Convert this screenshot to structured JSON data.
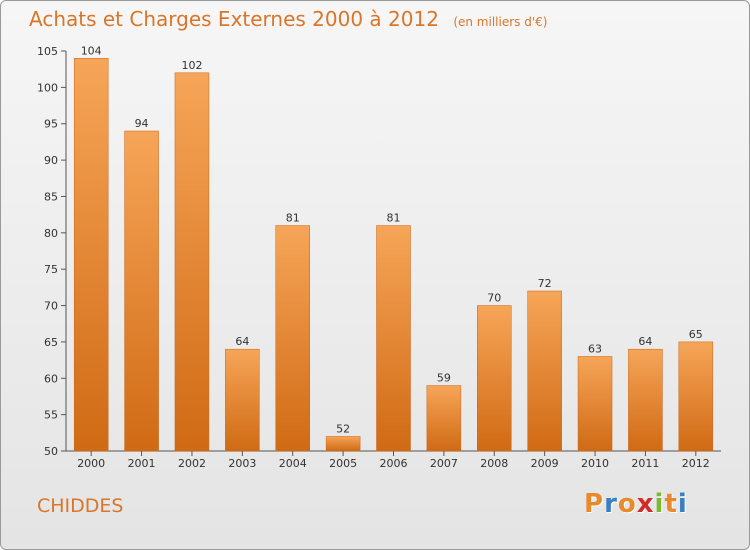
{
  "chart_data": {
    "type": "bar",
    "title": "Achats et Charges Externes 2000 à 2012",
    "subtitle": "(en milliers d'€)",
    "categories": [
      "2000",
      "2001",
      "2002",
      "2003",
      "2004",
      "2005",
      "2006",
      "2007",
      "2008",
      "2009",
      "2010",
      "2011",
      "2012"
    ],
    "values": [
      104,
      94,
      102,
      64,
      81,
      52,
      81,
      59,
      70,
      72,
      63,
      64,
      65
    ],
    "ylim": [
      50,
      105
    ],
    "yticks": [
      50,
      55,
      60,
      65,
      70,
      75,
      80,
      85,
      90,
      95,
      100,
      105
    ],
    "grid": false,
    "bar_color": "#f08a2c",
    "title_color": "#d9762a"
  },
  "place_name": "CHIDDES",
  "logo": {
    "letters": [
      "P",
      "r",
      "o",
      "x",
      "i",
      "t",
      "i"
    ],
    "colors": [
      "#e8892b",
      "#3a7fc4",
      "#e8892b",
      "#d42a2a",
      "#7cb830",
      "#e8892b",
      "#3a7fc4"
    ]
  }
}
